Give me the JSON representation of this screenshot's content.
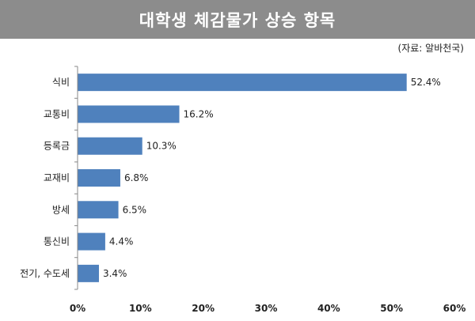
{
  "header": {
    "title": "대학생 체감물가 상승 항목",
    "source": "(자료: 알바천국)"
  },
  "chart_data": {
    "type": "bar",
    "orientation": "horizontal",
    "title": "대학생 체감물가 상승 항목",
    "categories": [
      "식비",
      "교통비",
      "등록금",
      "교재비",
      "방세",
      "통신비",
      "전기, 수도세"
    ],
    "values": [
      52.4,
      16.2,
      10.3,
      6.8,
      6.5,
      4.4,
      3.4
    ],
    "value_labels": [
      "52.4%",
      "16.2%",
      "10.3%",
      "6.8%",
      "6.5%",
      "4.4%",
      "3.4%"
    ],
    "xlim": [
      0,
      60
    ],
    "x_ticks": [
      0,
      10,
      20,
      30,
      40,
      50,
      60
    ],
    "x_tick_labels": [
      "0%",
      "10%",
      "20%",
      "30%",
      "40%",
      "50%",
      "60%"
    ],
    "grid": false,
    "legend": "none",
    "bar_color": "#4f81bd",
    "title_bg_color": "#8c8c8c"
  }
}
